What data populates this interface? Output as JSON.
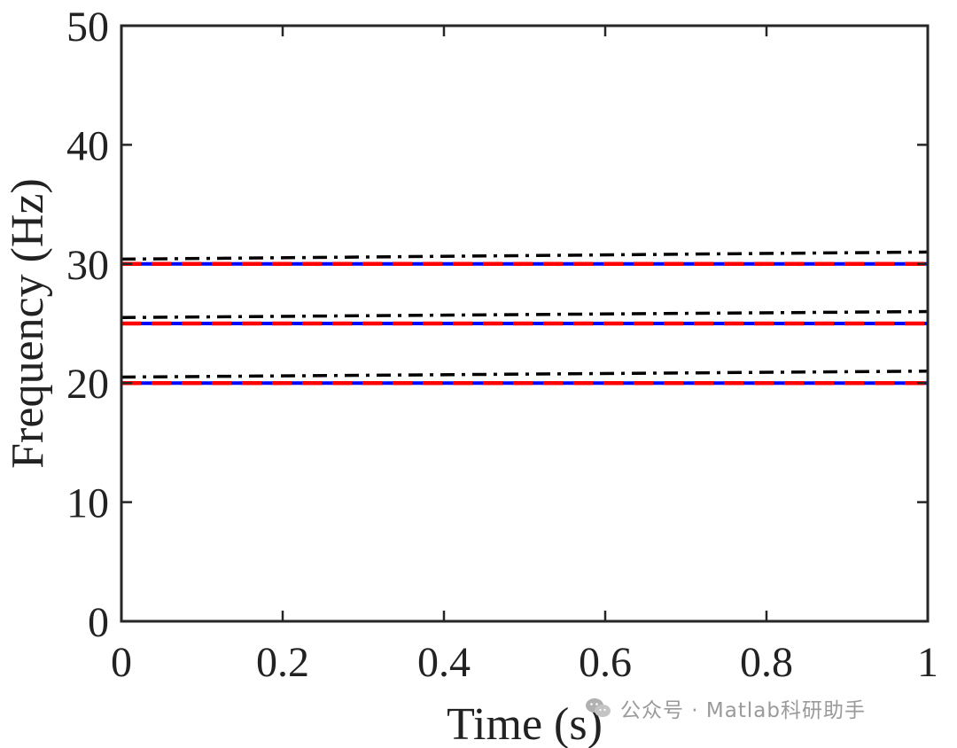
{
  "chart_data": {
    "type": "line",
    "xlabel": "Time (s)",
    "ylabel": "Frequency (Hz)",
    "xlim": [
      0,
      1
    ],
    "ylim": [
      0,
      50
    ],
    "xticks": [
      0,
      0.2,
      0.4,
      0.6,
      0.8,
      1
    ],
    "xtick_labels": [
      "0",
      "0.2",
      "0.4",
      "0.6",
      "0.8",
      "1"
    ],
    "yticks": [
      0,
      10,
      20,
      30,
      40,
      50
    ],
    "ytick_labels": [
      "0",
      "10",
      "20",
      "30",
      "40",
      "50"
    ],
    "grid": false,
    "series": [
      {
        "style": "solid",
        "color": "#0000ff",
        "x": [
          0,
          1
        ],
        "y": [
          20,
          20
        ]
      },
      {
        "style": "solid",
        "color": "#0000ff",
        "x": [
          0,
          1
        ],
        "y": [
          25,
          25
        ]
      },
      {
        "style": "solid",
        "color": "#0000ff",
        "x": [
          0,
          1
        ],
        "y": [
          30,
          30
        ]
      },
      {
        "style": "dashed",
        "color": "#ff0000",
        "x": [
          0,
          1
        ],
        "y": [
          20,
          20
        ]
      },
      {
        "style": "dashed",
        "color": "#ff0000",
        "x": [
          0,
          1
        ],
        "y": [
          25,
          25
        ]
      },
      {
        "style": "dashed",
        "color": "#ff0000",
        "x": [
          0,
          1
        ],
        "y": [
          30,
          30
        ]
      },
      {
        "style": "dashdot",
        "color": "#000000",
        "x": [
          0,
          1
        ],
        "y": [
          20.5,
          21.0
        ]
      },
      {
        "style": "dashdot",
        "color": "#000000",
        "x": [
          0,
          1
        ],
        "y": [
          25.5,
          26.0
        ]
      },
      {
        "style": "dashdot",
        "color": "#000000",
        "x": [
          0,
          1
        ],
        "y": [
          30.4,
          31.0
        ]
      }
    ]
  },
  "watermark": {
    "icon": "wechat-icon",
    "text": "公众号 · Matlab科研助手"
  }
}
